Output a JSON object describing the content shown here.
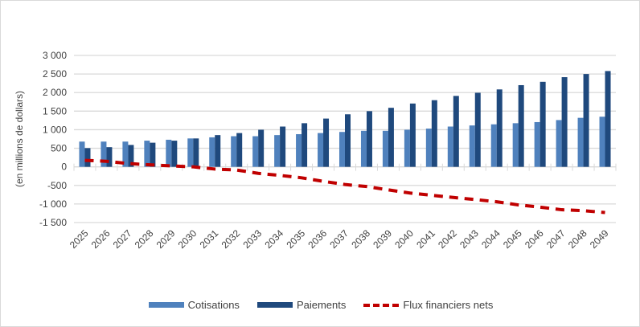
{
  "chart_data": {
    "type": "bar",
    "title": "",
    "xlabel": "",
    "ylabel": "(en millions de dollars)",
    "ylim": [
      -1500,
      3000
    ],
    "yticks": [
      3000,
      2500,
      2000,
      1500,
      1000,
      500,
      0,
      -500,
      -1000,
      -1500
    ],
    "ytick_labels": [
      "3 000",
      "2 500",
      "2 000",
      "1 500",
      "1 000",
      "500",
      "0",
      "-500",
      "-1 000",
      "-1 500"
    ],
    "grid": true,
    "legend_position": "bottom",
    "categories": [
      "2025",
      "2026",
      "2027",
      "2028",
      "2029",
      "2030",
      "2031",
      "2032",
      "2033",
      "2034",
      "2035",
      "2036",
      "2037",
      "2038",
      "2039",
      "2040",
      "2041",
      "2042",
      "2043",
      "2044",
      "2045",
      "2046",
      "2047",
      "2048",
      "2049"
    ],
    "series": [
      {
        "name": "Cotisations",
        "kind": "bar",
        "color": "#4f81bd",
        "values": [
          680,
          680,
          680,
          705,
          730,
          765,
          795,
          825,
          825,
          855,
          880,
          910,
          940,
          970,
          970,
          1000,
          1030,
          1085,
          1115,
          1145,
          1175,
          1205,
          1260,
          1320,
          1350
        ]
      },
      {
        "name": "Paiements",
        "kind": "bar",
        "color": "#1f497d",
        "values": [
          505,
          530,
          590,
          650,
          705,
          765,
          855,
          910,
          1000,
          1085,
          1175,
          1300,
          1415,
          1500,
          1590,
          1705,
          1795,
          1910,
          1995,
          2085,
          2200,
          2290,
          2415,
          2500,
          2580
        ]
      },
      {
        "name": "Flux financiers nets",
        "kind": "line",
        "style": "dashed",
        "color": "#c00000",
        "values": [
          175,
          150,
          90,
          55,
          25,
          0,
          -60,
          -85,
          -175,
          -230,
          -295,
          -390,
          -475,
          -530,
          -620,
          -705,
          -765,
          -825,
          -880,
          -940,
          -1025,
          -1085,
          -1155,
          -1180,
          -1230
        ]
      }
    ]
  }
}
